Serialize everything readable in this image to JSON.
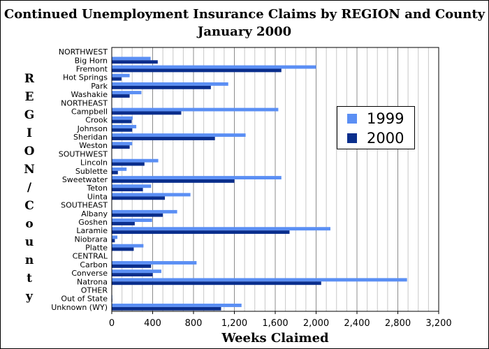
{
  "chart_data": {
    "type": "bar",
    "orientation": "horizontal",
    "title": [
      "Continued Unemployment Insurance Claims by REGION and County",
      "January 2000"
    ],
    "xlabel": "Weeks Claimed",
    "ylabel": "REGION/County",
    "xlim": [
      0,
      3200
    ],
    "xticks": [
      0,
      400,
      800,
      1200,
      1600,
      2000,
      2400,
      2800,
      3200
    ],
    "xtick_labels": [
      "0",
      "400",
      "800",
      "1,200",
      "1,600",
      "2,000",
      "2,400",
      "2,800",
      "3,200"
    ],
    "grid": "vertical",
    "legend_position": "right",
    "categories": [
      "NORTHWEST",
      "Big Horn",
      "Fremont",
      "Hot Springs",
      "Park",
      "Washakie",
      "NORTHEAST",
      "Campbell",
      "Crook",
      "Johnson",
      "Sheridan",
      "Weston",
      "SOUTHWEST",
      "Lincoln",
      "Sublette",
      "Sweetwater",
      "Teton",
      "Uinta",
      "SOUTHEAST",
      "Albany",
      "Goshen",
      "Laramie",
      "Niobrara",
      "Platte",
      "CENTRAL",
      "Carbon",
      "Converse",
      "Natrona",
      "OTHER",
      "Out of State",
      "Unknown (WY)"
    ],
    "series": [
      {
        "name": "1999",
        "color": "#5b8ff4",
        "values": [
          null,
          380,
          2000,
          175,
          1140,
          290,
          null,
          1630,
          205,
          240,
          1310,
          200,
          null,
          455,
          145,
          1660,
          385,
          770,
          null,
          640,
          395,
          2140,
          55,
          310,
          null,
          830,
          485,
          2890,
          null,
          0,
          1270
        ]
      },
      {
        "name": "2000",
        "color": "#0a2e8c",
        "values": [
          null,
          450,
          1660,
          95,
          970,
          175,
          null,
          680,
          195,
          200,
          1010,
          175,
          null,
          320,
          60,
          1200,
          305,
          520,
          null,
          500,
          225,
          1740,
          30,
          215,
          null,
          385,
          400,
          2050,
          null,
          0,
          1070
        ]
      }
    ]
  }
}
